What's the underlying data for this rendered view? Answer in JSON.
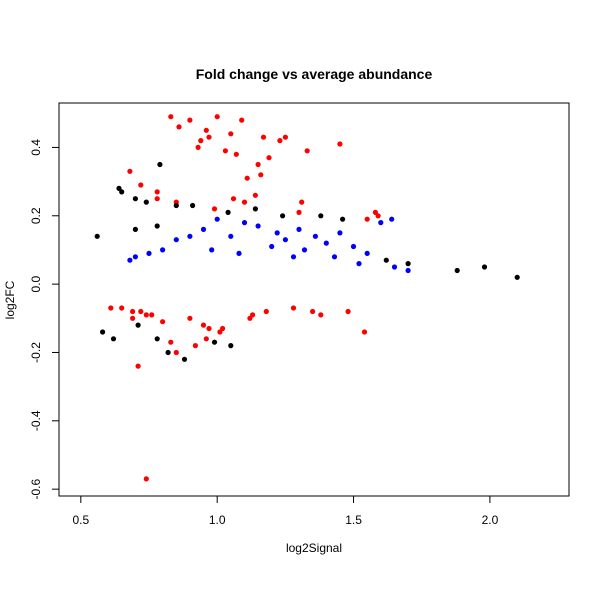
{
  "chart_data": {
    "type": "scatter",
    "title": "Fold change vs average abundance",
    "xlabel": "log2Signal",
    "ylabel": "log2FC",
    "xlim": [
      0.42,
      2.29
    ],
    "ylim": [
      -0.62,
      0.53
    ],
    "xticks": [
      0.5,
      1.0,
      1.5,
      2.0
    ],
    "xtick_labels": [
      "0.5",
      "1.0",
      "1.5",
      "2.0"
    ],
    "yticks": [
      -0.6,
      -0.4,
      -0.2,
      0.0,
      0.2,
      0.4
    ],
    "ytick_labels": [
      "-0.6",
      "-0.4",
      "-0.2",
      "0.0",
      "0.2",
      "0.4"
    ],
    "grid": false,
    "legend": "none",
    "colors": {
      "not_significant": "#000000",
      "significant_low_fc": "#0000ff",
      "significant_high_fc": "#ff0000"
    },
    "series": [
      {
        "color": "#ff0000",
        "x": [
          0.83,
          0.9,
          1.0,
          1.09,
          0.86,
          0.96,
          0.94,
          0.97,
          1.05,
          1.17,
          1.23,
          1.25,
          1.33,
          1.45,
          0.93,
          1.03,
          1.07,
          1.19,
          0.68,
          1.15,
          1.16,
          1.11,
          1.14,
          0.72,
          0.78,
          1.1,
          1.31,
          1.58,
          1.59,
          0.78,
          0.85,
          0.99,
          1.06,
          1.3,
          1.55,
          0.61,
          0.69,
          0.74,
          0.9,
          1.18,
          1.28,
          1.38,
          1.48,
          0.8,
          0.95,
          1.13,
          1.35,
          0.97,
          1.54,
          0.65,
          0.72,
          0.83,
          0.71,
          0.85,
          1.01,
          0.92,
          1.12,
          1.02,
          0.96,
          0.69,
          0.76,
          0.74
        ],
        "y": [
          0.49,
          0.48,
          0.49,
          0.48,
          0.46,
          0.45,
          0.42,
          0.43,
          0.44,
          0.43,
          0.42,
          0.43,
          0.39,
          0.41,
          0.4,
          0.39,
          0.38,
          0.37,
          0.33,
          0.35,
          0.32,
          0.31,
          0.26,
          0.29,
          0.27,
          0.24,
          0.24,
          0.21,
          0.2,
          0.25,
          0.24,
          0.22,
          0.25,
          0.21,
          0.19,
          -0.07,
          -0.08,
          -0.09,
          -0.1,
          -0.08,
          -0.07,
          -0.09,
          -0.08,
          -0.11,
          -0.12,
          -0.09,
          -0.08,
          -0.13,
          -0.14,
          -0.07,
          -0.08,
          -0.17,
          -0.24,
          -0.2,
          -0.14,
          -0.18,
          -0.1,
          -0.13,
          -0.16,
          -0.1,
          -0.09,
          -0.57
        ]
      },
      {
        "color": "#000000",
        "x": [
          0.79,
          0.64,
          0.65,
          0.7,
          0.74,
          0.85,
          0.91,
          1.04,
          1.14,
          1.24,
          1.38,
          1.46,
          0.7,
          0.78,
          0.56,
          1.62,
          1.7,
          1.88,
          1.98,
          2.1,
          0.88,
          0.82,
          1.05,
          0.62,
          0.58,
          0.78,
          0.99,
          0.71
        ],
        "y": [
          0.35,
          0.28,
          0.27,
          0.25,
          0.24,
          0.23,
          0.23,
          0.21,
          0.22,
          0.2,
          0.2,
          0.19,
          0.16,
          0.17,
          0.14,
          0.07,
          0.06,
          0.04,
          0.05,
          0.02,
          -0.22,
          -0.2,
          -0.18,
          -0.16,
          -0.14,
          -0.16,
          -0.17,
          -0.12
        ]
      },
      {
        "color": "#0000ff",
        "x": [
          1.0,
          1.1,
          1.15,
          1.22,
          1.3,
          1.36,
          1.45,
          1.6,
          1.64,
          0.95,
          1.05,
          1.25,
          1.4,
          0.9,
          0.85,
          1.5,
          1.55,
          1.2,
          1.32,
          0.98,
          1.08,
          1.28,
          1.43,
          1.52,
          1.65,
          1.7,
          0.8,
          0.75,
          0.7,
          0.68
        ],
        "y": [
          0.19,
          0.18,
          0.17,
          0.15,
          0.16,
          0.14,
          0.15,
          0.18,
          0.19,
          0.16,
          0.14,
          0.13,
          0.12,
          0.14,
          0.13,
          0.11,
          0.09,
          0.11,
          0.1,
          0.1,
          0.09,
          0.08,
          0.08,
          0.06,
          0.05,
          0.04,
          0.1,
          0.09,
          0.08,
          0.07
        ]
      }
    ]
  }
}
